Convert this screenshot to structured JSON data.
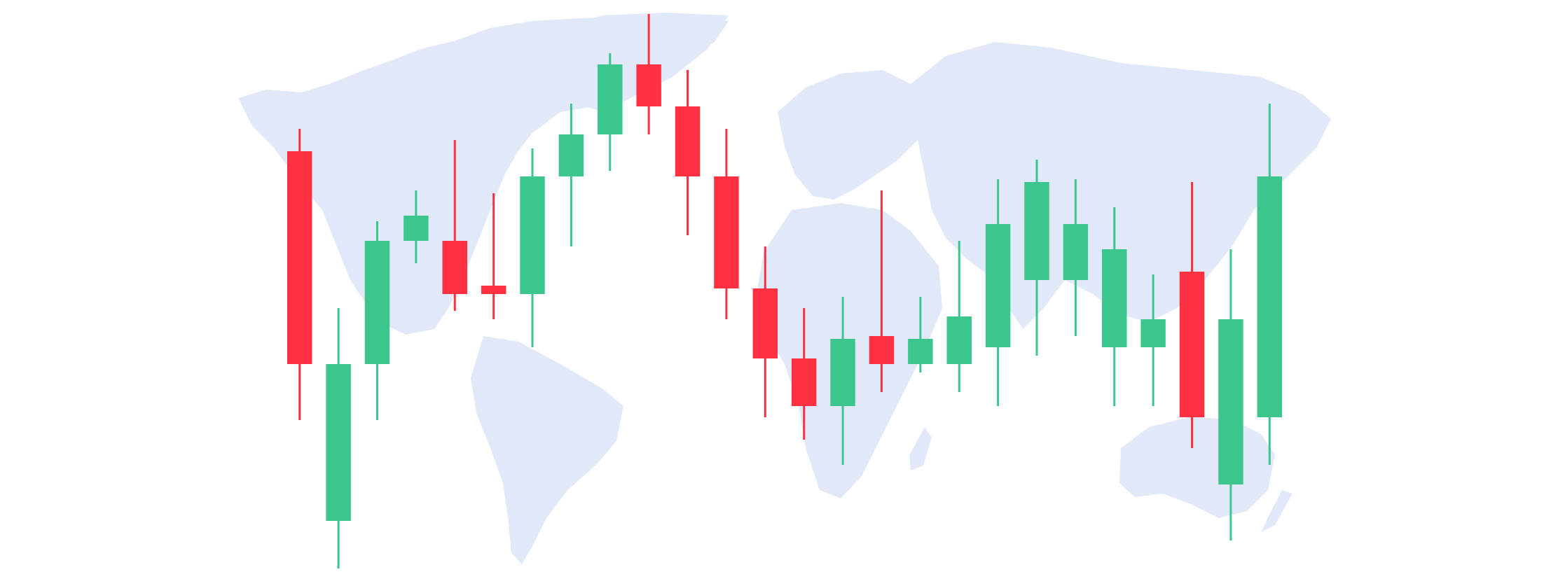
{
  "colors": {
    "background": "#ffffff",
    "map": "#e1e8f7",
    "up": "#3cc68e",
    "down": "#ff3042"
  },
  "background": {
    "icon": "world-map-icon"
  },
  "chart_data": {
    "type": "candlestick",
    "title": "",
    "xlabel": "",
    "ylabel": "",
    "axes_visible": false,
    "grid": false,
    "legend": "none",
    "ylim": [
      0,
      100
    ],
    "candles": [
      {
        "open": 74.5,
        "high": 78.5,
        "low": 26.5,
        "close": 36.5
      },
      {
        "open": 8.5,
        "high": 46.5,
        "low": 0.0,
        "close": 36.5
      },
      {
        "open": 36.5,
        "high": 62.0,
        "low": 26.5,
        "close": 58.5
      },
      {
        "open": 58.5,
        "high": 67.5,
        "low": 54.5,
        "close": 63.0
      },
      {
        "open": 58.5,
        "high": 76.5,
        "low": 46.0,
        "close": 49.0
      },
      {
        "open": 50.5,
        "high": 67.0,
        "low": 44.5,
        "close": 49.0
      },
      {
        "open": 49.0,
        "high": 75.0,
        "low": 39.5,
        "close": 70.0
      },
      {
        "open": 70.0,
        "high": 83.0,
        "low": 57.5,
        "close": 77.5
      },
      {
        "open": 77.5,
        "high": 92.0,
        "low": 71.0,
        "close": 90.0
      },
      {
        "open": 90.0,
        "high": 99.0,
        "low": 77.5,
        "close": 82.5
      },
      {
        "open": 82.5,
        "high": 89.0,
        "low": 59.5,
        "close": 70.0
      },
      {
        "open": 70.0,
        "high": 78.5,
        "low": 44.5,
        "close": 50.0
      },
      {
        "open": 50.0,
        "high": 57.5,
        "low": 27.0,
        "close": 37.5
      },
      {
        "open": 37.5,
        "high": 46.5,
        "low": 23.0,
        "close": 29.0
      },
      {
        "open": 29.0,
        "high": 48.5,
        "low": 18.5,
        "close": 41.0
      },
      {
        "open": 41.5,
        "high": 67.5,
        "low": 31.5,
        "close": 36.5
      },
      {
        "open": 36.5,
        "high": 48.5,
        "low": 35.0,
        "close": 41.0
      },
      {
        "open": 36.5,
        "high": 58.5,
        "low": 31.5,
        "close": 45.0
      },
      {
        "open": 39.5,
        "high": 69.5,
        "low": 29.0,
        "close": 61.5
      },
      {
        "open": 51.5,
        "high": 73.0,
        "low": 38.0,
        "close": 69.0
      },
      {
        "open": 51.5,
        "high": 69.5,
        "low": 41.5,
        "close": 61.5
      },
      {
        "open": 39.5,
        "high": 64.5,
        "low": 29.0,
        "close": 57.0
      },
      {
        "open": 39.5,
        "high": 52.5,
        "low": 29.0,
        "close": 44.5
      },
      {
        "open": 53.0,
        "high": 69.0,
        "low": 21.5,
        "close": 27.0
      },
      {
        "open": 15.0,
        "high": 57.0,
        "low": 5.0,
        "close": 44.5
      },
      {
        "open": 27.0,
        "high": 83.0,
        "low": 18.5,
        "close": 70.0
      }
    ]
  }
}
